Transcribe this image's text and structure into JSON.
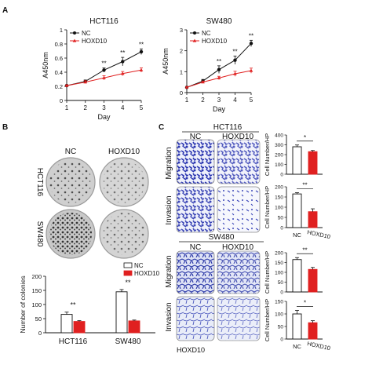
{
  "panels": {
    "a": "A",
    "b": "B",
    "c": "C"
  },
  "colors": {
    "nc": "#111111",
    "hoxd10": "#e02020",
    "cell": "#2a35b0",
    "plate": "#d8d8d8"
  },
  "images": {
    "b_col_nc": "NC",
    "b_col_hoxd10": "HOXD10",
    "b_row_hct116": "HCT116",
    "b_row_sw480": "SW480",
    "c_top_title": "HCT116",
    "c_bottom_title": "SW480",
    "c_col_nc": "NC",
    "c_col_hoxd10": "HOXD10",
    "c_row_migration": "Migration",
    "c_row_invasion": "Invasion",
    "c_footer": "HOXD10"
  },
  "chart_data": [
    {
      "type": "line",
      "panel": "A-left",
      "title": "HCT116",
      "xlabel": "Day",
      "ylabel": "A450nm",
      "x": [
        1,
        2,
        3,
        4,
        5
      ],
      "ylim": [
        0,
        1
      ],
      "yticks": [
        "0",
        "0.2",
        "0.4",
        "0.6",
        "0.8",
        "1"
      ],
      "series": [
        {
          "name": "NC",
          "values": [
            0.21,
            0.27,
            0.43,
            0.55,
            0.69
          ],
          "errors": [
            0.01,
            0.02,
            0.03,
            0.06,
            0.04
          ]
        },
        {
          "name": "HOXD10",
          "values": [
            0.21,
            0.26,
            0.32,
            0.38,
            0.43
          ],
          "errors": [
            0.01,
            0.02,
            0.03,
            0.03,
            0.03
          ]
        }
      ],
      "sig": [
        "",
        "",
        "**",
        "**",
        "**"
      ],
      "legend": "top-left"
    },
    {
      "type": "line",
      "panel": "A-right",
      "title": "SW480",
      "xlabel": "Day",
      "ylabel": "A450nm",
      "x": [
        1,
        2,
        3,
        4,
        5
      ],
      "ylim": [
        0,
        3
      ],
      "yticks": [
        "0",
        "1",
        "2",
        "3"
      ],
      "series": [
        {
          "name": "NC",
          "values": [
            0.25,
            0.55,
            1.1,
            1.55,
            2.35
          ],
          "errors": [
            0.03,
            0.08,
            0.18,
            0.2,
            0.15
          ]
        },
        {
          "name": "HOXD10",
          "values": [
            0.25,
            0.5,
            0.7,
            0.9,
            1.05
          ],
          "errors": [
            0.03,
            0.05,
            0.08,
            0.12,
            0.12
          ]
        }
      ],
      "sig": [
        "",
        "",
        "**",
        "**",
        "**"
      ],
      "legend": "top-left"
    },
    {
      "type": "bar",
      "panel": "B-bottom",
      "ylabel": "Number of colonies",
      "categories": [
        "HCT116",
        "SW480"
      ],
      "ylim": [
        0,
        200
      ],
      "yticks": [
        "0",
        "50",
        "100",
        "150",
        "200"
      ],
      "series": [
        {
          "name": "NC",
          "values": [
            65,
            145
          ],
          "errors": [
            8,
            8
          ]
        },
        {
          "name": "HOXD10",
          "values": [
            40,
            42
          ],
          "errors": [
            3,
            3
          ]
        }
      ],
      "sig": [
        "**",
        "**"
      ],
      "legend": "top-right"
    },
    {
      "type": "bar",
      "panel": "C-HCT116-migration",
      "ylabel": "Cell Number/HP",
      "ylim": [
        0,
        400
      ],
      "yticks": [
        "0",
        "100",
        "200",
        "300",
        "400"
      ],
      "categories": [
        "NC",
        "HOXD10"
      ],
      "values": [
        280,
        230
      ],
      "errors": [
        18,
        12
      ],
      "sig": "*"
    },
    {
      "type": "bar",
      "panel": "C-HCT116-invasion",
      "ylabel": "Cell Number/HP",
      "ylim": [
        0,
        200
      ],
      "yticks": [
        "0",
        "50",
        "100",
        "150",
        "200"
      ],
      "categories": [
        "NC",
        "HOXD10"
      ],
      "values": [
        165,
        78
      ],
      "errors": [
        6,
        14
      ],
      "sig": "**",
      "xticks_shown": true
    },
    {
      "type": "bar",
      "panel": "C-SW480-migration",
      "ylabel": "Cell Number/HP",
      "ylim": [
        0,
        200
      ],
      "yticks": [
        "0",
        "50",
        "100",
        "150",
        "200"
      ],
      "categories": [
        "NC",
        "HOXD10"
      ],
      "values": [
        165,
        115
      ],
      "errors": [
        10,
        10
      ],
      "sig": "**"
    },
    {
      "type": "bar",
      "panel": "C-SW480-invasion",
      "ylabel": "Cell Number/HP",
      "ylim": [
        0,
        150
      ],
      "yticks": [
        "0",
        "50",
        "100",
        "150"
      ],
      "categories": [
        "NC",
        "HOXD10"
      ],
      "values": [
        100,
        65
      ],
      "errors": [
        14,
        8
      ],
      "sig": "*",
      "xticks_shown": true
    }
  ]
}
